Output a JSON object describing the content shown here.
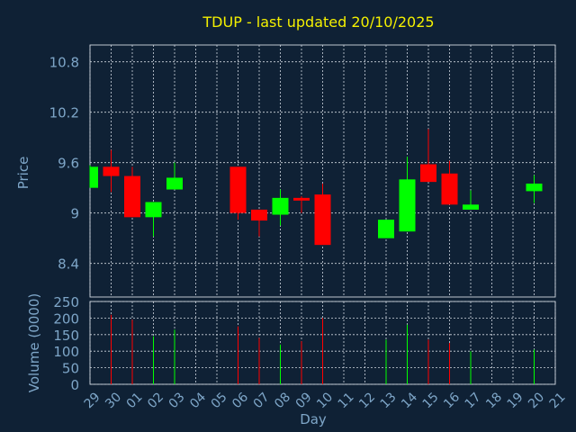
{
  "chart_data": {
    "type": "candlestick",
    "title": "TDUP - last updated 20/10/2025",
    "price_panel": {
      "ylabel": "Price",
      "ylim": [
        8.0,
        11.0
      ],
      "yticks": [
        "8.4",
        "9",
        "9.6",
        "10.2",
        "10.8"
      ],
      "ytick_values": [
        8.4,
        9.0,
        9.6,
        10.2,
        10.8
      ]
    },
    "volume_panel": {
      "ylabel": "Volume (0000)",
      "ylim": [
        0,
        250
      ],
      "yticks": [
        "0",
        "50",
        "100",
        "150",
        "200",
        "250"
      ],
      "ytick_values": [
        0,
        50,
        100,
        150,
        200,
        250
      ]
    },
    "xlabel": "Day",
    "x_ticks": [
      "29",
      "30",
      "01",
      "02",
      "03",
      "04",
      "05",
      "06",
      "07",
      "08",
      "09",
      "10",
      "11",
      "12",
      "13",
      "14",
      "15",
      "16",
      "17",
      "18",
      "19",
      "20",
      "21"
    ],
    "candles": [
      {
        "day": "29",
        "open": 9.3,
        "high": 9.57,
        "low": 9.3,
        "close": 9.55,
        "volume": null
      },
      {
        "day": "30",
        "open": 9.55,
        "high": 9.75,
        "low": 9.25,
        "close": 9.44,
        "volume": 210
      },
      {
        "day": "01",
        "open": 9.44,
        "high": 9.55,
        "low": 8.95,
        "close": 8.95,
        "volume": 195
      },
      {
        "day": "02",
        "open": 8.95,
        "high": 9.13,
        "low": 8.72,
        "close": 9.13,
        "volume": 145
      },
      {
        "day": "03",
        "open": 9.28,
        "high": 9.6,
        "low": 9.28,
        "close": 9.42,
        "volume": 165
      },
      {
        "day": "06",
        "open": 9.55,
        "high": 9.55,
        "low": 8.92,
        "close": 9.0,
        "volume": 175
      },
      {
        "day": "07",
        "open": 9.04,
        "high": 9.04,
        "low": 8.72,
        "close": 8.91,
        "volume": 140
      },
      {
        "day": "08",
        "open": 8.98,
        "high": 9.28,
        "low": 8.85,
        "close": 9.18,
        "volume": 120
      },
      {
        "day": "09",
        "open": 9.18,
        "high": 9.2,
        "low": 9.0,
        "close": 9.16,
        "volume": 130
      },
      {
        "day": "10",
        "open": 9.22,
        "high": 9.35,
        "low": 8.62,
        "close": 8.62,
        "volume": 200
      },
      {
        "day": "13",
        "open": 8.7,
        "high": 8.92,
        "low": 8.7,
        "close": 8.92,
        "volume": 135
      },
      {
        "day": "14",
        "open": 8.78,
        "high": 9.67,
        "low": 8.78,
        "close": 9.4,
        "volume": 180
      },
      {
        "day": "15",
        "open": 9.58,
        "high": 10.0,
        "low": 9.37,
        "close": 9.37,
        "volume": 135
      },
      {
        "day": "16",
        "open": 9.47,
        "high": 9.62,
        "low": 9.1,
        "close": 9.1,
        "volume": 125
      },
      {
        "day": "17",
        "open": 9.04,
        "high": 9.27,
        "low": 9.04,
        "close": 9.1,
        "volume": 100
      },
      {
        "day": "20",
        "open": 9.26,
        "high": 9.45,
        "low": 9.12,
        "close": 9.35,
        "volume": 105
      }
    ],
    "colors": {
      "background": "#0f2135",
      "up": "#00ff00",
      "down": "#ff0000",
      "text": "#7ea6c8",
      "title": "#f4f000",
      "grid": "#d0d8e0"
    }
  }
}
